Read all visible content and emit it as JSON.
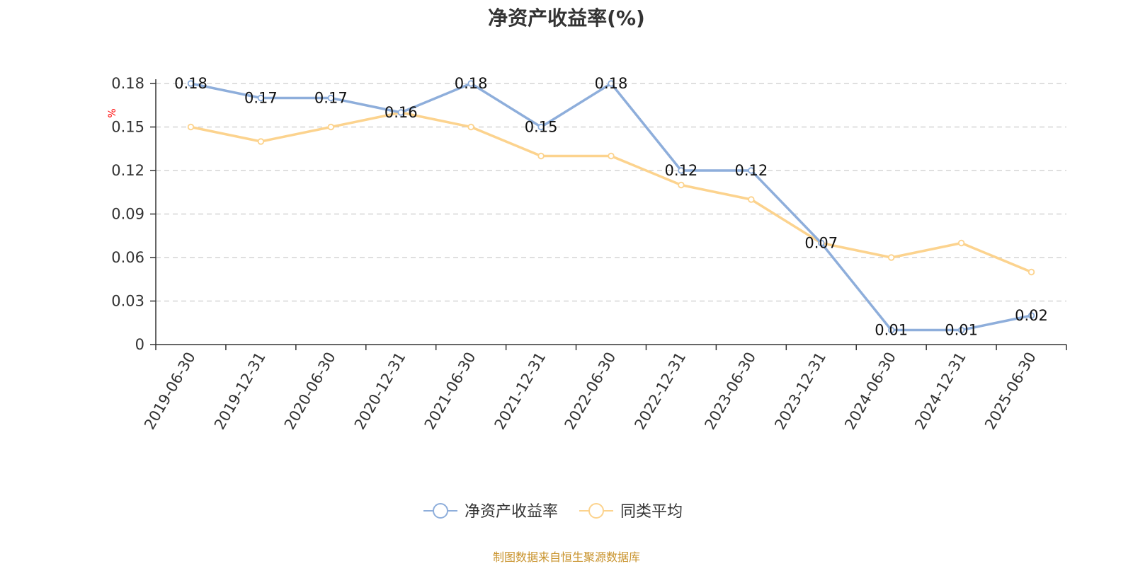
{
  "chart_data": {
    "type": "line",
    "title": "净资产收益率(%)",
    "ylabel": "%",
    "xlabel": "",
    "categories": [
      "2019-06-30",
      "2019-12-31",
      "2020-06-30",
      "2020-12-31",
      "2021-06-30",
      "2021-12-31",
      "2022-06-30",
      "2022-12-31",
      "2023-06-30",
      "2023-12-31",
      "2024-06-30",
      "2024-12-31",
      "2025-06-30"
    ],
    "ylim": [
      0,
      0.18
    ],
    "yticks": [
      "0",
      "0.03",
      "0.06",
      "0.09",
      "0.12",
      "0.15",
      "0.18"
    ],
    "grid": true,
    "legend_position": "bottom-center",
    "series": [
      {
        "name": "净资产收益率",
        "color": "#8eaedb",
        "values": [
          0.18,
          0.17,
          0.17,
          0.16,
          0.18,
          0.15,
          0.18,
          0.12,
          0.12,
          0.07,
          0.01,
          0.01,
          0.02
        ],
        "labels": [
          "0.18",
          "0.17",
          "0.17",
          "0.16",
          "0.18",
          "0.15",
          "0.18",
          "0.12",
          "0.12",
          "0.07",
          "0.01",
          "0.01",
          "0.02"
        ]
      },
      {
        "name": "同类平均",
        "color": "#fcd38e",
        "values": [
          0.15,
          0.14,
          0.15,
          0.16,
          0.15,
          0.13,
          0.13,
          0.11,
          0.1,
          0.07,
          0.06,
          0.07,
          0.05
        ]
      }
    ]
  },
  "source_note": "制图数据来自恒生聚源数据库",
  "colors": {
    "axis_label_color": "#ff0000",
    "source_color": "#c8922a",
    "grid_color": "#cccccc"
  }
}
